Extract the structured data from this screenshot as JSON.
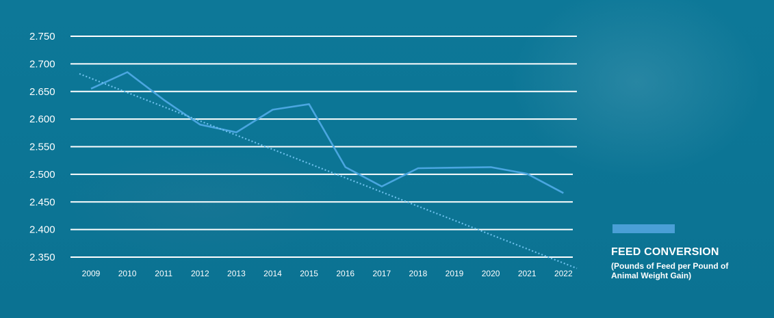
{
  "chart_data": {
    "type": "line",
    "title": "",
    "xlabel": "",
    "ylabel": "",
    "categories": [
      "2009",
      "2010",
      "2011",
      "2012",
      "2013",
      "2014",
      "2015",
      "2016",
      "2017",
      "2018",
      "2019",
      "2020",
      "2021",
      "2022"
    ],
    "series": [
      {
        "name": "FEED CONVERSION",
        "values": [
          2.655,
          2.685,
          2.635,
          2.59,
          2.576,
          2.617,
          2.627,
          2.513,
          2.478,
          2.511,
          2.512,
          2.513,
          2.501,
          2.466
        ],
        "color": "#4aa6e0",
        "style": "solid"
      },
      {
        "name": "",
        "values": [
          2.682,
          2.6549,
          2.6278,
          2.6007,
          2.5736,
          2.5465,
          2.5194,
          2.4923,
          2.4652,
          2.4381,
          2.411,
          2.3839,
          2.3568,
          2.3297
        ],
        "color": "#6cc0ec",
        "style": "dotted",
        "role": "trendline"
      }
    ],
    "ylim": [
      2.35,
      2.75
    ],
    "yticks": [
      "2.750",
      "2.700",
      "2.650",
      "2.600",
      "2.550",
      "2.500",
      "2.450",
      "2.400",
      "2.350"
    ],
    "grid": true,
    "legend": {
      "position": "right",
      "title": "FEED CONVERSION",
      "subtitle": "(Pounds of Feed per Pound of Animal Weight Gain)",
      "swatch_color": "#4a9fd6"
    }
  },
  "colors": {
    "background": "#0b7596",
    "gridline": "#ffffff",
    "text": "#ffffff"
  }
}
